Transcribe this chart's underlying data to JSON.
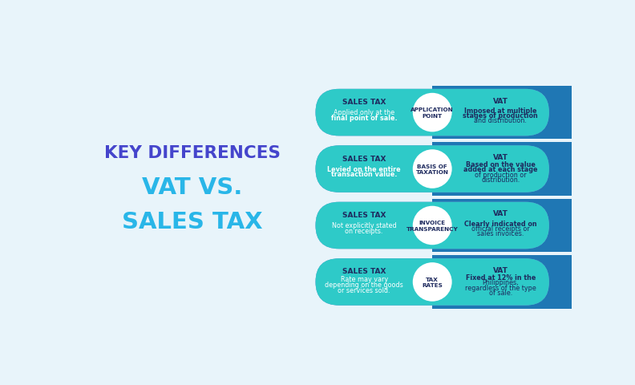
{
  "bg_color": "#e8f4fa",
  "title_line1": "KEY DIFFERENCES",
  "title_line2": "VAT VS.",
  "title_line3": "SALES TAX",
  "title_color1": "#4545cc",
  "title_color2": "#29b6e8",
  "rows": [
    {
      "label": "APPLICATION\nPOINT",
      "sales_tax_title": "SALES TAX",
      "sales_tax_lines": [
        {
          "text": "Applied only at the",
          "bold": false
        },
        {
          "text": "final point of sale",
          "bold": true
        },
        {
          "text": ".",
          "bold": false,
          "append_to_prev": true
        }
      ],
      "vat_title": "VAT",
      "vat_lines": [
        {
          "text": "Imposed at ",
          "bold": false
        },
        {
          "text": "multiple",
          "bold": true
        },
        {
          "text": "stages",
          "bold": true
        },
        {
          "text": " of production",
          "bold": false
        },
        {
          "text": "and distribution.",
          "bold": false
        }
      ],
      "sales_tax_display": [
        "Applied only at the",
        "**final point of sale**."
      ],
      "vat_display": [
        "Imposed at **multiple**",
        "**stages** of production",
        "and distribution."
      ]
    },
    {
      "label": "BASIS OF\nTAXATION",
      "sales_tax_title": "SALES TAX",
      "sales_tax_display": [
        "Levied on the **entire**",
        "**transaction value**."
      ],
      "vat_title": "VAT",
      "vat_display": [
        "Based on the **value**",
        "**added at each stage**",
        "of production or",
        "distribution."
      ]
    },
    {
      "label": "INVOICE\nTRANSPARENCY",
      "sales_tax_title": "SALES TAX",
      "sales_tax_display": [
        "Not explicitly stated",
        "on receipts."
      ],
      "vat_title": "VAT",
      "vat_display": [
        "**Clearly indicated** on",
        "official receipts or",
        "sales invoices."
      ]
    },
    {
      "label": "TAX\nRATES",
      "sales_tax_title": "SALES TAX",
      "sales_tax_display": [
        "Rate may vary",
        "depending on the goods",
        "or services sold."
      ],
      "vat_title": "VAT",
      "vat_display": [
        "**Fixed at 12%** in the",
        "Philippines,",
        "regardless of the type",
        "of sale."
      ]
    }
  ],
  "pill_left_color": "#7b83d4",
  "pill_right_color": "#2ecac8",
  "circle_color": "#ffffff",
  "sales_tax_title_color": "#1e2a5e",
  "sales_tax_body_color": "#ffffff",
  "vat_title_color": "#1e2a5e",
  "vat_body_color": "#1e2a5e",
  "label_color": "#1e2a5e"
}
